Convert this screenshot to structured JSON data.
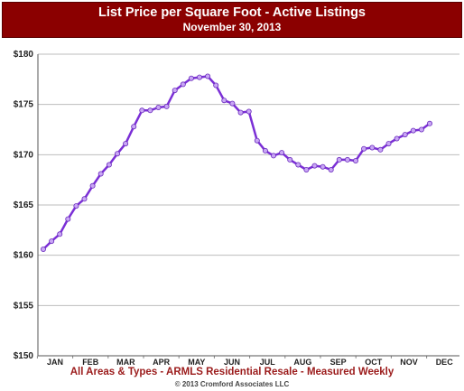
{
  "header": {
    "title": "List Price per Square Foot - Active Listings",
    "subtitle": "November 30, 2013"
  },
  "footer": {
    "line1": "All Areas & Types - ARMLS Residential Resale - Measured Weekly",
    "line2": "© 2013 Cromford Associates LLC"
  },
  "colors": {
    "header_bg": "#8b0000",
    "line": "#7b2fd6",
    "marker_fill": "#c9a6f5",
    "footer_text": "#9b1b1b"
  },
  "chart_data": {
    "type": "line",
    "title": "List Price per Square Foot - Active Listings",
    "subtitle": "November 30, 2013",
    "xlabel": "",
    "ylabel": "",
    "ylim": [
      150,
      180
    ],
    "yticks": [
      "$150",
      "$155",
      "$160",
      "$165",
      "$170",
      "$175",
      "$180"
    ],
    "ytick_values": [
      150,
      155,
      160,
      165,
      170,
      175,
      180
    ],
    "months": [
      "JAN",
      "FEB",
      "MAR",
      "APR",
      "MAY",
      "JUN",
      "JUL",
      "AUG",
      "SEP",
      "OCT",
      "NOV",
      "DEC"
    ],
    "grid": true,
    "series": [
      {
        "values": [
          160.6,
          161.4,
          162.1,
          163.6,
          164.9,
          165.6,
          166.9,
          168.1,
          169.0,
          170.1,
          171.1,
          172.8,
          174.4,
          174.4,
          174.7,
          174.8,
          176.4,
          177.0,
          177.6,
          177.7,
          177.8,
          176.9,
          175.4,
          175.1,
          174.2,
          174.3,
          171.4,
          170.4,
          169.9,
          170.2,
          169.5,
          169.0,
          168.5,
          168.9,
          168.8,
          168.5,
          169.5,
          169.5,
          169.4,
          170.6,
          170.7,
          170.5,
          171.1,
          171.6,
          172.0,
          172.4,
          172.5,
          173.1
        ]
      }
    ]
  }
}
